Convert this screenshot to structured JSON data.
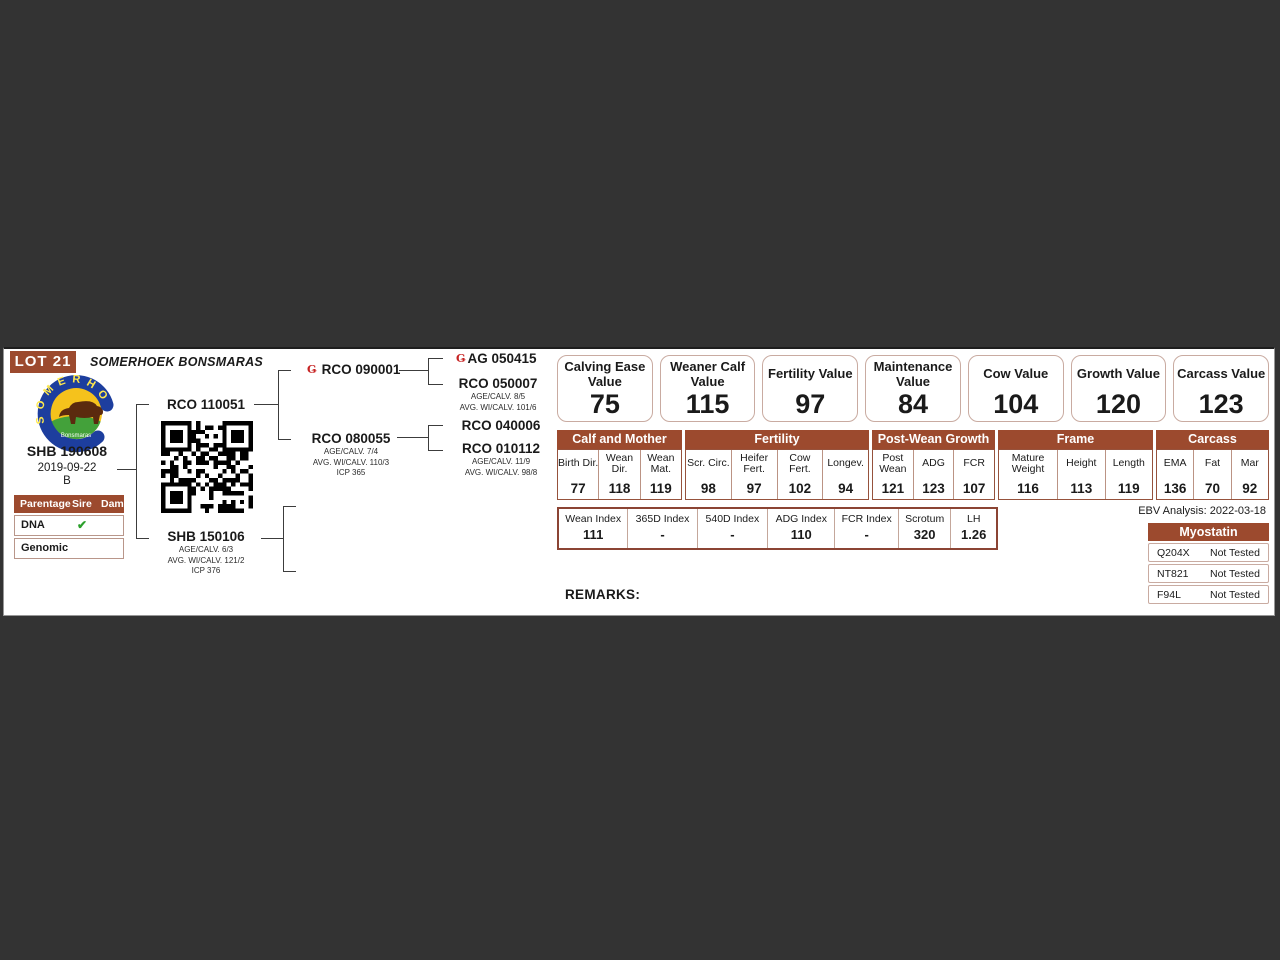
{
  "colors": {
    "background": "#333333",
    "accent_brick": "#9c4a2e",
    "index_border": "#8b4434",
    "box_border": "#c9aba1",
    "check_green": "#2ca02c",
    "brand_red": "#c62222"
  },
  "icons": {
    "breed_brand": "Ǥ",
    "dna_check": "✔"
  },
  "lot_label": "LOT 21",
  "farm_title": "SOMERHOEK BONSMARAS",
  "animal": {
    "id": "SHB 190608",
    "birth_date": "2019-09-22",
    "sex_code": "B"
  },
  "parentage": {
    "header": {
      "col1": "Parentage",
      "col2": "Sire",
      "col3": "Dam"
    },
    "rows": [
      {
        "label": "DNA",
        "sire_check": "✔",
        "dam_check": ""
      },
      {
        "label": "Genomic",
        "sire_check": "",
        "dam_check": ""
      }
    ]
  },
  "pedigree": {
    "sire": {
      "id": "RCO 110051"
    },
    "dam": {
      "id": "SHB 150106",
      "lines": [
        "AGE/CALV. 6/3",
        "AVG. WI/CALV. 121/2",
        "ICP 376"
      ]
    },
    "sire_sire": {
      "id": "RCO 090001"
    },
    "sire_dam": {
      "id": "RCO 080055",
      "lines": [
        "AGE/CALV. 7/4",
        "AVG. WI/CALV. 110/3",
        "ICP 365"
      ]
    },
    "sire_sire_sire": {
      "id": "AG 050415"
    },
    "sire_sire_dam": {
      "id": "RCO 050007",
      "lines": [
        "AGE/CALV. 8/5",
        "AVG. WI/CALV. 101/6"
      ]
    },
    "sire_dam_sire": {
      "id": "RCO 040006"
    },
    "sire_dam_dam": {
      "id": "RCO 010112",
      "lines": [
        "AGE/CALV. 11/9",
        "AVG. WI/CALV. 98/8"
      ]
    }
  },
  "value_boxes": [
    {
      "label": "Calving Ease Value",
      "value": "75"
    },
    {
      "label": "Weaner Calf Value",
      "value": "115"
    },
    {
      "label": "Fertility Value",
      "value": "97"
    },
    {
      "label": "Maintenance Value",
      "value": "84"
    },
    {
      "label": "Cow Value",
      "value": "104"
    },
    {
      "label": "Growth Value",
      "value": "120"
    },
    {
      "label": "Carcass Value",
      "value": "123"
    }
  ],
  "ebv_table": {
    "groups": [
      {
        "name": "Calf and Mother",
        "cols": [
          {
            "label": "Birth Dir.",
            "value": "77"
          },
          {
            "label": "Wean Dir.",
            "value": "118"
          },
          {
            "label": "Wean Mat.",
            "value": "119"
          }
        ]
      },
      {
        "name": "Fertility",
        "cols": [
          {
            "label": "Scr. Circ.",
            "value": "98"
          },
          {
            "label": "Heifer Fert.",
            "value": "97"
          },
          {
            "label": "Cow Fert.",
            "value": "102"
          },
          {
            "label": "Longev.",
            "value": "94"
          }
        ]
      },
      {
        "name": "Post-Wean Growth",
        "cols": [
          {
            "label": "Post Wean",
            "value": "121"
          },
          {
            "label": "ADG",
            "value": "123"
          },
          {
            "label": "FCR",
            "value": "107"
          }
        ]
      },
      {
        "name": "Frame",
        "cols": [
          {
            "label": "Mature Weight",
            "value": "116"
          },
          {
            "label": "Height",
            "value": "113"
          },
          {
            "label": "Length",
            "value": "119"
          }
        ]
      },
      {
        "name": "Carcass",
        "cols": [
          {
            "label": "EMA",
            "value": "136"
          },
          {
            "label": "Fat",
            "value": "70"
          },
          {
            "label": "Mar",
            "value": "92"
          }
        ]
      }
    ]
  },
  "index_table": {
    "cols": [
      {
        "label": "Wean Index",
        "value": "111"
      },
      {
        "label": "365D Index",
        "value": "-"
      },
      {
        "label": "540D Index",
        "value": "-"
      },
      {
        "label": "ADG Index",
        "value": "110"
      },
      {
        "label": "FCR Index",
        "value": "-"
      },
      {
        "label": "Scrotum",
        "value": "320"
      },
      {
        "label": "LH",
        "value": "1.26"
      }
    ]
  },
  "ebv_analysis": "EBV Analysis: 2022-03-18",
  "myostatin": {
    "title": "Myostatin",
    "rows": [
      {
        "gene": "Q204X",
        "result": "Not Tested"
      },
      {
        "gene": "NT821",
        "result": "Not Tested"
      },
      {
        "gene": "F94L",
        "result": "Not Tested"
      }
    ]
  },
  "remarks_label": "REMARKS:",
  "logo": {
    "arc_text": "SOMERHOEK",
    "sub_text": "Bonsmaras"
  }
}
